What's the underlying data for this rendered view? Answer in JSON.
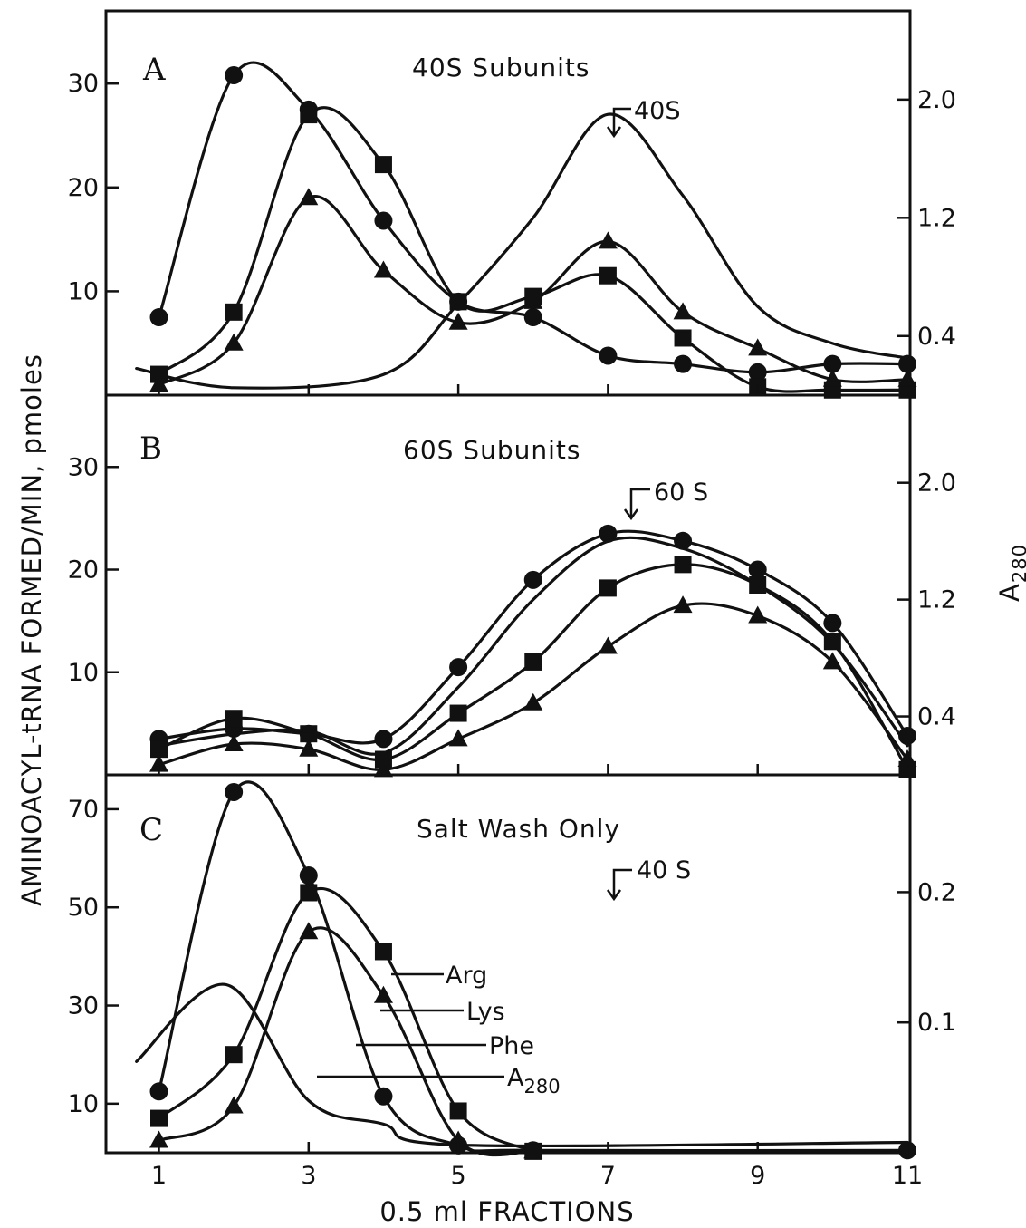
{
  "figure": {
    "xlabel": "0.5 ml FRACTIONS",
    "ylabel": "AMINOACYL-tRNA FORMED/MIN, pmoles",
    "ylabel_right": "A",
    "ylabel_right_sub": "280"
  },
  "chart_data": [
    {
      "type": "line",
      "panel": "A",
      "title": "40S Subunits",
      "annotation": "40S",
      "annotation_x": 7,
      "x_ticks": [
        1,
        3,
        5,
        7,
        9,
        11
      ],
      "y_ticks": [
        10,
        20,
        30
      ],
      "ylim": [
        0,
        37
      ],
      "y2_ticks": [
        "2.0",
        "1.2",
        "0.4"
      ],
      "y2_tick_values": [
        2.0,
        1.2,
        0.4
      ],
      "y2lim": [
        0,
        2.6
      ],
      "series": [
        {
          "name": "Phe",
          "marker": "circle",
          "points": [
            [
              1,
              7.5
            ],
            [
              2,
              30.8
            ],
            [
              3,
              27.5
            ],
            [
              4,
              16.8
            ],
            [
              5,
              9.0
            ],
            [
              6,
              7.5
            ],
            [
              7,
              3.8
            ],
            [
              8,
              3.0
            ],
            [
              9,
              2.2
            ],
            [
              10,
              3.0
            ],
            [
              11,
              3.0
            ]
          ]
        },
        {
          "name": "Arg",
          "marker": "square",
          "points": [
            [
              1,
              2.0
            ],
            [
              2,
              8.0
            ],
            [
              3,
              27.0
            ],
            [
              4,
              22.2
            ],
            [
              5,
              9.0
            ],
            [
              6,
              9.5
            ],
            [
              7,
              11.5
            ],
            [
              8,
              5.5
            ],
            [
              9,
              0.8
            ],
            [
              10,
              0.5
            ],
            [
              11,
              0.5
            ]
          ]
        },
        {
          "name": "Lys",
          "marker": "triangle",
          "points": [
            [
              1,
              1.0
            ],
            [
              2,
              5.0
            ],
            [
              3,
              19.0
            ],
            [
              4,
              12.0
            ],
            [
              5,
              7.0
            ],
            [
              6,
              9.0
            ],
            [
              7,
              14.8
            ],
            [
              8,
              8.0
            ],
            [
              9,
              4.5
            ],
            [
              10,
              1.5
            ],
            [
              11,
              1.5
            ]
          ]
        },
        {
          "name": "A280",
          "marker": "none",
          "points": [
            [
              0.7,
              0.18
            ],
            [
              2,
              0.05
            ],
            [
              4,
              0.14
            ],
            [
              5,
              0.62
            ],
            [
              6,
              1.2
            ],
            [
              7,
              1.9
            ],
            [
              8,
              1.35
            ],
            [
              9,
              0.6
            ],
            [
              10,
              0.35
            ],
            [
              11,
              0.25
            ]
          ]
        }
      ]
    },
    {
      "type": "line",
      "panel": "B",
      "title": "60S Subunits",
      "annotation": "60 S",
      "annotation_x": 7.2,
      "x_ticks": [
        1,
        3,
        5,
        7,
        9,
        11
      ],
      "y_ticks": [
        10,
        20,
        30
      ],
      "ylim": [
        0,
        37
      ],
      "y2_ticks": [
        "2.0",
        "1.2",
        "0.4"
      ],
      "y2_tick_values": [
        2.0,
        1.2,
        0.4
      ],
      "y2lim": [
        0,
        2.6
      ],
      "series": [
        {
          "name": "Phe",
          "marker": "circle",
          "points": [
            [
              1,
              3.5
            ],
            [
              2,
              4.5
            ],
            [
              3,
              4.0
            ],
            [
              4,
              3.5
            ],
            [
              5,
              10.5
            ],
            [
              6,
              19.0
            ],
            [
              7,
              23.5
            ],
            [
              8,
              22.8
            ],
            [
              9,
              20.0
            ],
            [
              10,
              14.8
            ],
            [
              11,
              3.8
            ]
          ]
        },
        {
          "name": "Arg",
          "marker": "square",
          "points": [
            [
              1,
              2.5
            ],
            [
              2,
              5.5
            ],
            [
              3,
              4.0
            ],
            [
              4,
              1.5
            ],
            [
              5,
              6.0
            ],
            [
              6,
              11.0
            ],
            [
              7,
              18.2
            ],
            [
              8,
              20.5
            ],
            [
              9,
              18.5
            ],
            [
              10,
              13.0
            ],
            [
              11,
              0.5
            ]
          ]
        },
        {
          "name": "Lys",
          "marker": "triangle",
          "points": [
            [
              1,
              1.0
            ],
            [
              2,
              3.0
            ],
            [
              3,
              2.5
            ],
            [
              4,
              0.5
            ],
            [
              5,
              3.5
            ],
            [
              6,
              7.0
            ],
            [
              7,
              12.5
            ],
            [
              8,
              16.5
            ],
            [
              9,
              15.5
            ],
            [
              10,
              11.0
            ],
            [
              11,
              1.5
            ]
          ]
        },
        {
          "name": "A280",
          "marker": "none",
          "points": [
            [
              1,
              0.2
            ],
            [
              2,
              0.28
            ],
            [
              3,
              0.3
            ],
            [
              4,
              0.15
            ],
            [
              5,
              0.6
            ],
            [
              6,
              1.2
            ],
            [
              7,
              1.6
            ],
            [
              8,
              1.55
            ],
            [
              9,
              1.3
            ],
            [
              10,
              0.9
            ],
            [
              11,
              0.2
            ]
          ]
        }
      ]
    },
    {
      "type": "line",
      "panel": "C",
      "title": "Salt Wash Only",
      "annotation": "40 S",
      "annotation_x": 7,
      "x_ticks": [
        1,
        3,
        5,
        7,
        9,
        11
      ],
      "y_ticks": [
        10,
        30,
        50,
        70
      ],
      "ylim": [
        0,
        77
      ],
      "y2_ticks": [
        "0.2",
        "0.1"
      ],
      "y2_tick_values": [
        0.2,
        0.1
      ],
      "y2lim": [
        0,
        0.29
      ],
      "series": [
        {
          "name": "Phe",
          "marker": "circle",
          "points": [
            [
              1,
              12.5
            ],
            [
              2,
              73.5
            ],
            [
              3,
              56.5
            ],
            [
              4,
              11.5
            ],
            [
              5,
              1.5
            ],
            [
              6,
              0.5
            ],
            [
              11,
              0.5
            ]
          ]
        },
        {
          "name": "Arg",
          "marker": "square",
          "points": [
            [
              1,
              7.0
            ],
            [
              2,
              20.0
            ],
            [
              3,
              53.0
            ],
            [
              4,
              41.0
            ],
            [
              5,
              8.5
            ],
            [
              6,
              0.3
            ]
          ]
        },
        {
          "name": "Lys",
          "marker": "triangle",
          "points": [
            [
              1,
              2.5
            ],
            [
              2,
              9.5
            ],
            [
              3,
              45.0
            ],
            [
              4,
              32.0
            ],
            [
              5,
              2.5
            ],
            [
              6,
              0.3
            ]
          ]
        },
        {
          "name": "A280",
          "marker": "none",
          "points": [
            [
              0.7,
              0.07
            ],
            [
              1.9,
              0.129
            ],
            [
              3,
              0.04
            ],
            [
              4,
              0.022
            ],
            [
              5,
              0.006
            ],
            [
              11,
              0.008
            ]
          ]
        }
      ],
      "legend": [
        "Arg",
        "Lys",
        "Phe",
        "A280"
      ]
    }
  ]
}
